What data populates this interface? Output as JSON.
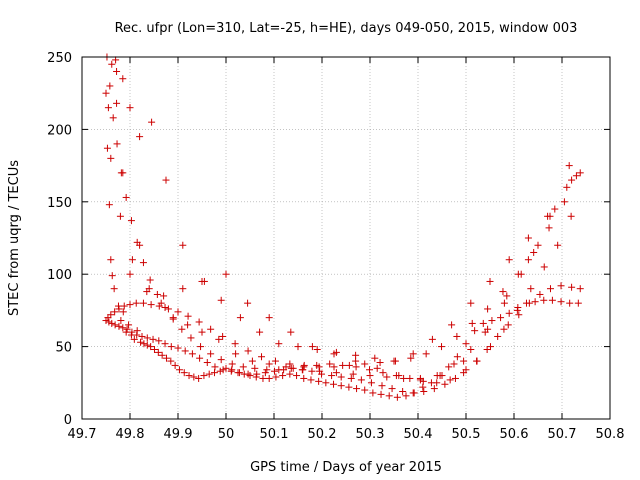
{
  "chart_data": {
    "type": "scatter",
    "title": "Rec. ufpr (Lon=310, Lat=-25, h=HE), days 049-050, 2015, window 003",
    "xlabel": "GPS time / Days of year 2015",
    "ylabel": "STEC from uqrg / TECUs",
    "xlim": [
      49.7,
      50.8
    ],
    "ylim": [
      0,
      250
    ],
    "xticks": [
      "49.7",
      "49.8",
      "49.9",
      "50",
      "50.1",
      "50.2",
      "50.3",
      "50.4",
      "50.5",
      "50.6",
      "50.7",
      "50.8"
    ],
    "yticks": [
      "0",
      "50",
      "100",
      "150",
      "200",
      "250"
    ],
    "grid": true,
    "marker": "+",
    "color": "#cc0000",
    "series": [
      {
        "x": [
          49.75,
          49.753,
          49.757,
          49.76,
          49.763,
          49.767,
          49.772,
          49.776,
          49.781,
          49.786,
          49.792,
          49.797,
          49.803,
          49.809,
          49.815,
          49.822,
          49.829,
          49.836,
          49.843,
          49.851,
          49.859,
          49.867,
          49.876,
          49.885,
          49.894,
          49.903,
          49.913,
          49.923,
          49.933,
          49.943,
          49.954,
          49.965,
          49.976,
          49.988,
          50.0,
          50.012,
          50.025,
          50.038,
          50.05,
          50.063,
          50.077,
          50.09,
          50.104,
          50.118,
          50.133,
          50.147,
          50.162,
          50.177,
          50.193,
          50.208,
          50.224,
          50.24,
          50.256,
          50.272,
          50.289,
          50.306,
          50.323,
          50.34,
          50.357,
          50.375,
          50.392,
          50.41,
          50.428,
          50.446,
          50.464,
          50.482,
          50.5,
          50.518,
          50.536,
          50.554,
          50.572,
          50.59,
          50.608,
          50.626,
          50.644,
          50.662,
          50.68,
          50.698,
          50.716,
          50.734,
          49.75,
          49.756,
          49.762,
          49.769,
          49.777,
          49.785,
          49.794,
          49.804,
          49.814,
          49.825,
          49.836,
          49.848,
          49.86,
          49.873,
          49.886,
          49.9,
          49.915,
          49.93,
          49.945,
          49.961,
          49.977,
          49.994,
          50.011,
          50.028,
          50.046,
          50.064,
          50.082,
          50.101,
          50.12,
          50.14,
          50.159,
          50.179,
          50.199,
          50.22,
          50.24,
          50.261,
          50.282,
          50.303,
          50.325,
          50.346,
          50.368,
          50.39,
          50.412,
          50.434,
          50.456,
          50.478,
          50.5,
          50.522,
          50.544,
          50.566,
          50.588,
          50.61,
          50.632,
          50.654,
          50.676,
          50.698,
          50.72,
          50.738,
          49.752,
          49.758,
          49.765,
          49.773,
          49.782,
          49.792,
          49.803,
          49.815,
          49.828,
          49.842,
          49.857,
          49.873,
          49.89,
          49.908,
          49.927,
          49.947,
          49.968,
          49.99,
          50.013,
          50.036,
          50.06,
          50.085,
          50.11,
          50.136,
          50.162,
          50.189,
          50.216,
          50.243,
          50.271,
          50.299,
          50.327,
          50.355,
          50.383,
          50.411,
          50.439,
          50.467,
          50.495,
          50.523,
          50.551,
          50.579,
          50.607,
          50.635,
          50.663,
          50.691,
          50.719,
          50.738,
          49.754,
          49.76,
          49.768,
          49.777,
          49.788,
          49.8,
          49.813,
          49.828,
          49.844,
          49.861,
          49.88,
          49.9,
          49.921,
          49.944,
          49.968,
          49.993,
          50.019,
          50.046,
          50.074,
          50.103,
          50.133,
          50.163,
          50.194,
          50.225,
          50.257,
          50.289,
          50.321,
          50.353,
          50.385,
          50.417,
          50.449,
          50.481,
          50.513,
          50.545,
          50.577,
          50.609,
          50.641,
          50.673,
          50.705,
          50.73,
          49.77,
          49.785,
          49.8,
          49.82,
          49.845,
          49.875,
          49.91,
          49.95,
          49.99,
          50.03,
          50.07,
          50.11,
          50.15,
          50.19,
          50.23,
          50.27,
          50.31,
          50.35,
          50.39,
          50.43,
          50.47,
          50.51,
          50.55,
          50.59,
          50.63,
          50.67,
          50.71,
          49.755,
          49.762,
          49.772,
          49.785,
          49.8,
          49.82,
          49.84,
          49.865,
          49.89,
          49.92,
          49.95,
          49.985,
          50.02,
          50.055,
          50.09,
          50.125,
          50.16,
          50.195,
          50.23,
          50.265,
          50.3,
          50.335,
          50.37,
          50.405,
          50.44,
          50.475,
          50.51,
          50.545,
          50.58,
          50.615,
          50.65,
          50.685,
          50.72,
          49.76,
          49.78,
          49.805,
          49.835,
          49.87,
          49.91,
          49.955,
          50.0,
          50.045,
          50.09,
          50.135,
          50.18,
          50.225,
          50.27,
          50.315,
          50.36,
          50.405,
          50.45,
          50.495,
          50.54,
          50.585,
          50.63,
          50.675,
          50.715
        ],
        "y": [
          225,
          187,
          148,
          110,
          99,
          90,
          218,
          78,
          68,
          74,
          60,
          65,
          58,
          55,
          61,
          53,
          52,
          51,
          50,
          48,
          46,
          44,
          42,
          40,
          37,
          34,
          32,
          30,
          29,
          28,
          30,
          31,
          32,
          33,
          35,
          34,
          32,
          31,
          30,
          29,
          28,
          28,
          29,
          30,
          31,
          30,
          28,
          27,
          26,
          25,
          24,
          23,
          22,
          21,
          20,
          18,
          17,
          16,
          15,
          16,
          18,
          22,
          25,
          30,
          36,
          43,
          52,
          61,
          66,
          68,
          70,
          73,
          77,
          80,
          81,
          82,
          82,
          81,
          80,
          80,
          68,
          67,
          66,
          65,
          64,
          63,
          62,
          60,
          58,
          57,
          56,
          55,
          54,
          52,
          50,
          49,
          47,
          45,
          42,
          39,
          36,
          34,
          33,
          32,
          31,
          31,
          32,
          33,
          34,
          35,
          34,
          33,
          31,
          30,
          29,
          28,
          27,
          25,
          23,
          21,
          19,
          18,
          19,
          21,
          24,
          28,
          34,
          40,
          48,
          57,
          65,
          72,
          80,
          86,
          90,
          92,
          91,
          90,
          250,
          230,
          208,
          190,
          170,
          153,
          137,
          122,
          108,
          96,
          86,
          77,
          69,
          62,
          56,
          50,
          45,
          41,
          38,
          36,
          35,
          34,
          34,
          35,
          36,
          37,
          38,
          37,
          36,
          34,
          32,
          30,
          28,
          26,
          25,
          27,
          32,
          40,
          50,
          62,
          75,
          90,
          105,
          120,
          140,
          170,
          70,
          72,
          74,
          76,
          78,
          79,
          80,
          80,
          79,
          78,
          76,
          74,
          71,
          67,
          62,
          57,
          52,
          47,
          43,
          40,
          38,
          37,
          36,
          36,
          37,
          38,
          39,
          40,
          42,
          45,
          50,
          57,
          66,
          76,
          88,
          100,
          115,
          132,
          150,
          168,
          248,
          235,
          215,
          195,
          205,
          165,
          120,
          95,
          82,
          70,
          60,
          52,
          50,
          48,
          46,
          44,
          42,
          40,
          45,
          55,
          65,
          80,
          95,
          110,
          125,
          140,
          160,
          215,
          245,
          240,
          170,
          100,
          120,
          90,
          80,
          70,
          65,
          60,
          55,
          45,
          40,
          38,
          36,
          34,
          33,
          32,
          31,
          30,
          29,
          28,
          27,
          30,
          38,
          48,
          62,
          80,
          100,
          120,
          145,
          165,
          180,
          140,
          110,
          88,
          85,
          90,
          95,
          100,
          80,
          70,
          60,
          50,
          45,
          40,
          35,
          30,
          28,
          30,
          40,
          60,
          85,
          110,
          140,
          175
        ]
      }
    ]
  }
}
